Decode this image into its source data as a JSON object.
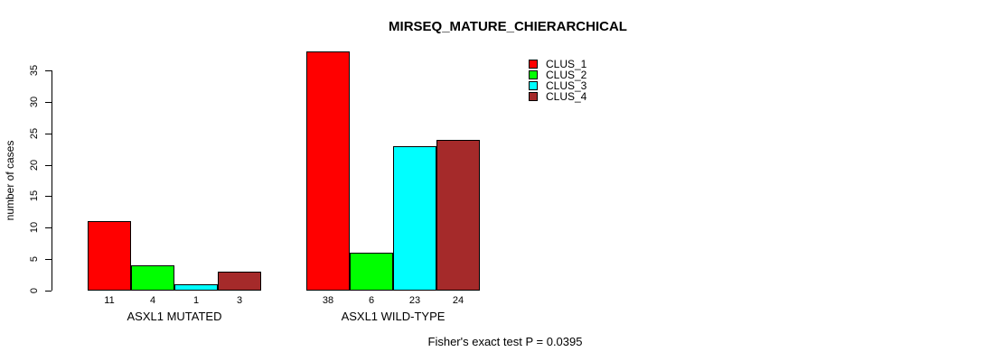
{
  "chart_data": {
    "type": "bar",
    "title": "MIRSEQ_MATURE_CHIERARCHICAL",
    "ylabel": "number of cases",
    "xlabel": "",
    "annotation": "Fisher's exact test P = 0.0395",
    "categories": [
      "ASXL1 MUTATED",
      "ASXL1 WILD-TYPE"
    ],
    "series": [
      {
        "name": "CLUS_1",
        "color": "#ff0000",
        "values": [
          11,
          38
        ]
      },
      {
        "name": "CLUS_2",
        "color": "#00ff00",
        "values": [
          4,
          6
        ]
      },
      {
        "name": "CLUS_3",
        "color": "#00ffff",
        "values": [
          1,
          23
        ]
      },
      {
        "name": "CLUS_4",
        "color": "#a52a2a",
        "values": [
          3,
          24
        ]
      }
    ],
    "y_ticks": [
      0,
      5,
      10,
      15,
      20,
      25,
      30,
      35
    ],
    "ylim": [
      0,
      38
    ],
    "grid": false,
    "legend_position": "top-right",
    "bar_border_color": "#000000",
    "axis_color": "#000000"
  }
}
